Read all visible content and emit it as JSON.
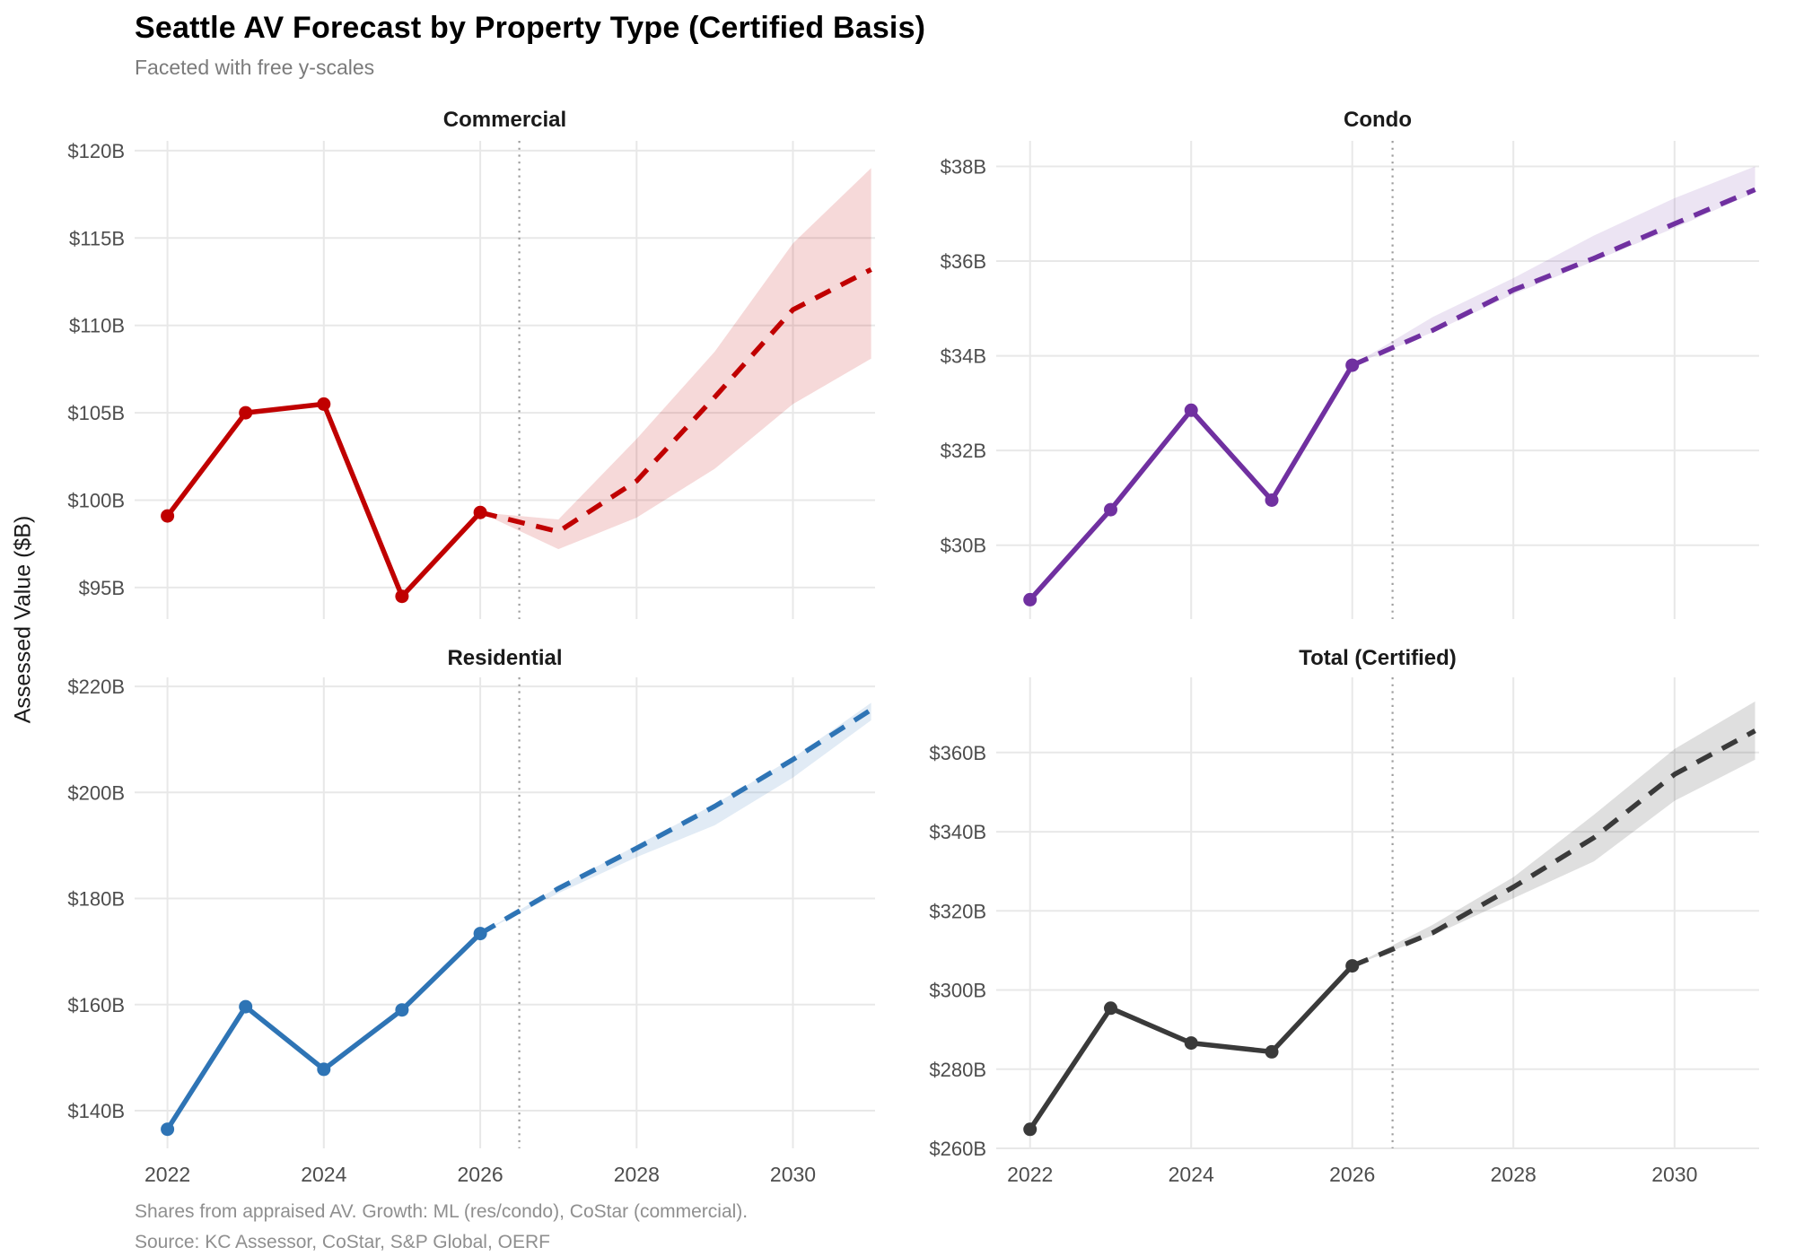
{
  "chart_data": {
    "type": "line",
    "title": "Seattle AV Forecast by Property Type (Certified Basis)",
    "subtitle": "Faceted with free y-scales",
    "ylabel": "Assessed Value ($B)",
    "caption": [
      "Shares from appraised AV. Growth: ML (res/condo), CoStar (commercial).",
      "Source: KC Assessor, CoStar, S&P Global, OERF"
    ],
    "legend_position": "none",
    "grid": true,
    "grid_color": "#e8e8e8",
    "vline_color": "#9e9e9e",
    "tick_color": "#4d4d4d",
    "forecast_start": 2026.5,
    "xlim": [
      2021.58,
      2031.05
    ],
    "x_ticks": [
      2022,
      2024,
      2026,
      2028,
      2030
    ],
    "x_tick_labels": [
      "2022",
      "2024",
      "2026",
      "2028",
      "2030"
    ],
    "historical_x": [
      2022,
      2023,
      2024,
      2025,
      2026
    ],
    "forecast_x": [
      2026,
      2027,
      2028,
      2029,
      2030,
      2031
    ],
    "facets": [
      {
        "name": "Commercial",
        "color": "#c00000",
        "ribbon_opacity": 0.15,
        "ylim": [
          93.2,
          120.56
        ],
        "y_ticks": [
          95,
          100,
          105,
          110,
          115,
          120
        ],
        "y_tick_labels": [
          "$95B",
          "$100B",
          "$105B",
          "$110B",
          "$115B",
          "$120B"
        ],
        "historical": [
          99.1,
          105.0,
          105.5,
          94.5,
          99.3
        ],
        "forecast": [
          99.3,
          98.2,
          101.1,
          105.9,
          110.9,
          113.2
        ],
        "ribbon_upper": [
          99.3,
          98.9,
          103.5,
          108.5,
          114.7,
          119.0
        ],
        "ribbon_lower": [
          99.3,
          97.2,
          99.0,
          101.8,
          105.5,
          108.1
        ]
      },
      {
        "name": "Condo",
        "color": "#7030a0",
        "ribbon_opacity": 0.13,
        "ylim": [
          28.44,
          38.54
        ],
        "y_ticks": [
          30,
          32,
          34,
          36,
          38
        ],
        "y_tick_labels": [
          "$30B",
          "$32B",
          "$34B",
          "$36B",
          "$38B"
        ],
        "historical": [
          28.85,
          30.75,
          32.85,
          30.95,
          33.8
        ],
        "forecast": [
          33.8,
          34.54,
          35.39,
          36.06,
          36.79,
          37.51
        ],
        "ribbon_upper": [
          33.8,
          34.82,
          35.64,
          36.54,
          37.33,
          38.0
        ],
        "ribbon_lower": [
          33.8,
          34.5,
          35.3,
          36.0,
          36.7,
          37.45
        ]
      },
      {
        "name": "Residential",
        "color": "#2e74b5",
        "ribbon_opacity": 0.14,
        "ylim": [
          132.9,
          221.7
        ],
        "y_ticks": [
          140,
          160,
          180,
          200,
          220
        ],
        "y_tick_labels": [
          "$140B",
          "$160B",
          "$180B",
          "$200B",
          "$220B"
        ],
        "historical": [
          136.5,
          159.6,
          147.8,
          159.0,
          173.4
        ],
        "forecast": [
          173.4,
          181.9,
          189.5,
          197.4,
          206.2,
          215.6
        ],
        "ribbon_upper": [
          173.4,
          182.2,
          190.0,
          197.8,
          206.5,
          216.9
        ],
        "ribbon_lower": [
          173.4,
          181.0,
          187.8,
          193.8,
          202.8,
          213.6
        ]
      },
      {
        "name": "Total (Certified)",
        "color": "#3a3a3a",
        "ribbon_opacity": 0.16,
        "ylim": [
          260.0,
          379.0
        ],
        "y_ticks": [
          260,
          280,
          300,
          320,
          340,
          360
        ],
        "y_tick_labels": [
          "$260B",
          "$280B",
          "$300B",
          "$320B",
          "$340B",
          "$360B"
        ],
        "historical": [
          264.8,
          295.4,
          286.6,
          284.4,
          306.1
        ],
        "forecast": [
          306.1,
          314.5,
          326.0,
          338.5,
          354.5,
          365.5
        ],
        "ribbon_upper": [
          306.1,
          316.5,
          328.5,
          344.3,
          360.9,
          372.9
        ],
        "ribbon_lower": [
          306.1,
          313.8,
          323.2,
          332.5,
          347.8,
          358.2
        ]
      }
    ]
  }
}
